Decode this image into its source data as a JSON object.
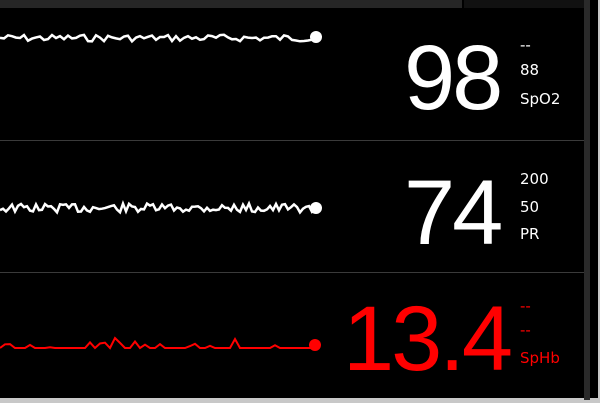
{
  "parameters": [
    {
      "label": "SpO2",
      "value": "98",
      "upper": "--",
      "lower": "88",
      "color": "#ffffff"
    },
    {
      "label": "PR",
      "value": "74",
      "upper": "200",
      "lower": "50",
      "color": "#ffffff"
    },
    {
      "label": "SpHb",
      "value": "13.4",
      "upper": "--",
      "lower": "--",
      "color": "#ff0000"
    }
  ]
}
